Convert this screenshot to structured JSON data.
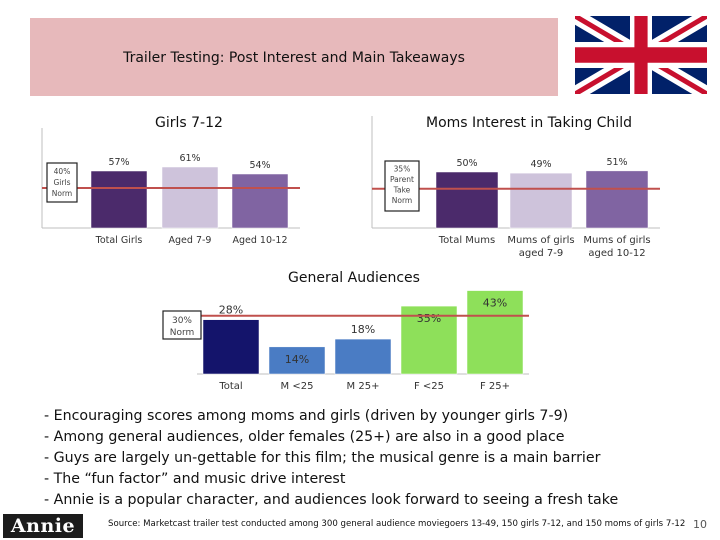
{
  "header": {
    "title": "Trailer Testing: Post Interest and Main Takeaways"
  },
  "chart_data": [
    {
      "type": "bar",
      "title": "Girls 7-12",
      "categories": [
        "Total Girls",
        "Aged 7-9",
        "Aged 10-12"
      ],
      "values": [
        57,
        61,
        54
      ],
      "value_labels": [
        "57%",
        "61%",
        "54%"
      ],
      "colors": [
        "#4b2a6b",
        "#cec3db",
        "#8064a2"
      ],
      "norm": {
        "value": 40,
        "label": [
          "40%",
          "Girls",
          "Norm"
        ]
      },
      "ylim": [
        0,
        100
      ]
    },
    {
      "type": "bar",
      "title": "Moms Interest in Taking Child",
      "categories": [
        [
          "Total Mums"
        ],
        [
          "Mums of girls",
          "aged 7-9"
        ],
        [
          "Mums of girls",
          "aged 10-12"
        ]
      ],
      "values": [
        50,
        49,
        51
      ],
      "value_labels": [
        "50%",
        "49%",
        "51%"
      ],
      "colors": [
        "#4b2a6b",
        "#cec3db",
        "#8064a2"
      ],
      "norm": {
        "value": 35,
        "label": [
          "35%",
          "Parent",
          "Take",
          "Norm"
        ]
      },
      "ylim": [
        0,
        100
      ]
    },
    {
      "type": "bar",
      "title": "General Audiences",
      "categories": [
        "Total",
        "M <25",
        "M 25+",
        "F <25",
        "F 25+"
      ],
      "values": [
        28,
        14,
        18,
        35,
        43
      ],
      "value_labels": [
        "28%",
        "14%",
        "18%",
        "35%",
        "43%"
      ],
      "colors": [
        "#14146b",
        "#4a7cc4",
        "#4a7cc4",
        "#8ee05a",
        "#8ee05a"
      ],
      "norm": {
        "value": 30,
        "label": [
          "30%",
          "Norm"
        ]
      },
      "ylim": [
        0,
        50
      ]
    }
  ],
  "takeaways": [
    "- Encouraging scores among moms and girls (driven by younger girls 7-9)",
    "- Among general audiences, older females (25+) are also in a good place",
    "- Guys are largely un-gettable for this film; the musical genre is a main barrier",
    "- The “fun factor” and music drive interest",
    "- Annie is a popular character, and audiences look forward to seeing a fresh take"
  ],
  "footer": {
    "logo": "Annie",
    "source": "Source: Marketcast trailer test conducted among 300 general audience moviegoers 13-49, 150 girls 7-12, and 150 moms of girls 7-12",
    "page": "10"
  },
  "colors": {
    "norm_line": "#c0504d",
    "title_box": "#e7b9bb"
  }
}
